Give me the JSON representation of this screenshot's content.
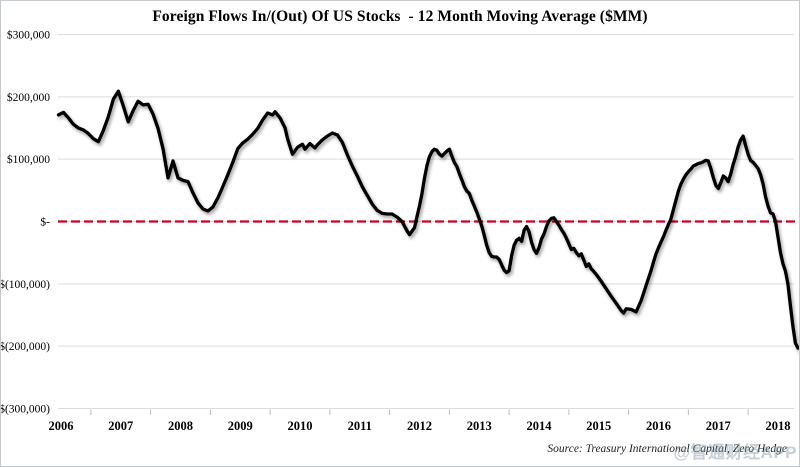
{
  "header": {
    "title": "Foreign Flows In/(Out) Of US Stocks  - 12 Month Moving Average ($MM)"
  },
  "footer": {
    "source": "Source: Treasury International Capital, Zero Hedge",
    "watermark": "@智通财经APP"
  },
  "chart_data": {
    "type": "line",
    "title": "Foreign Flows In/(Out) Of US Stocks - 12 Month Moving Average ($MM)",
    "xlabel": "",
    "ylabel": "",
    "legend": "none",
    "grid": "horizontal-only",
    "colors": {
      "line": "#000000",
      "zero_line": "#CC0022",
      "gridline": "#dcdcdc",
      "tick": "#b7bcc0",
      "text": "#000000",
      "background": "#ffffff"
    },
    "y_axis": {
      "min": -300000,
      "max": 300000,
      "ticks": [
        {
          "label": "$300,000",
          "value": 300000
        },
        {
          "label": "$200,000",
          "value": 200000
        },
        {
          "label": "$100,000",
          "value": 100000
        },
        {
          "label": "$-",
          "value": 0
        },
        {
          "label": "$(100,000)",
          "value": -100000
        },
        {
          "label": "$(200,000)",
          "value": -200000
        },
        {
          "label": "$(300,000)",
          "value": -300000
        }
      ]
    },
    "x_axis": {
      "min": 2006,
      "max": 2018.4,
      "ticks": [
        "2006",
        "2007",
        "2008",
        "2009",
        "2010",
        "2011",
        "2012",
        "2013",
        "2014",
        "2015",
        "2016",
        "2017",
        "2018"
      ]
    },
    "reference_line": {
      "value": 0,
      "color": "#CC0022",
      "style": "dashed"
    },
    "series": [
      {
        "name": "Foreign flows into US stocks, 12-month moving average ($MM)",
        "color": "#000000",
        "points": [
          [
            2006.0,
            171000
          ],
          [
            2006.083,
            175000
          ],
          [
            2006.167,
            166000
          ],
          [
            2006.25,
            156000
          ],
          [
            2006.333,
            150000
          ],
          [
            2006.417,
            147000
          ],
          [
            2006.5,
            141000
          ],
          [
            2006.583,
            133000
          ],
          [
            2006.667,
            128000
          ],
          [
            2006.75,
            146000
          ],
          [
            2006.833,
            168000
          ],
          [
            2006.917,
            196000
          ],
          [
            2007.0,
            209000
          ],
          [
            2007.083,
            186000
          ],
          [
            2007.167,
            160000
          ],
          [
            2007.25,
            178000
          ],
          [
            2007.333,
            193000
          ],
          [
            2007.417,
            187000
          ],
          [
            2007.5,
            188000
          ],
          [
            2007.583,
            172000
          ],
          [
            2007.667,
            149000
          ],
          [
            2007.75,
            116000
          ],
          [
            2007.833,
            70000
          ],
          [
            2007.917,
            97000
          ],
          [
            2008.0,
            70000
          ],
          [
            2008.083,
            66000
          ],
          [
            2008.167,
            64000
          ],
          [
            2008.25,
            46000
          ],
          [
            2008.333,
            30000
          ],
          [
            2008.417,
            20000
          ],
          [
            2008.5,
            17000
          ],
          [
            2008.583,
            23000
          ],
          [
            2008.667,
            38000
          ],
          [
            2008.75,
            56000
          ],
          [
            2008.833,
            75000
          ],
          [
            2008.917,
            95000
          ],
          [
            2009.0,
            117000
          ],
          [
            2009.083,
            126000
          ],
          [
            2009.167,
            132000
          ],
          [
            2009.25,
            140000
          ],
          [
            2009.333,
            149000
          ],
          [
            2009.417,
            163000
          ],
          [
            2009.5,
            174000
          ],
          [
            2009.583,
            171000
          ],
          [
            2009.625,
            176000
          ],
          [
            2009.708,
            166000
          ],
          [
            2009.792,
            150000
          ],
          [
            2009.833,
            133000
          ],
          [
            2009.917,
            108000
          ],
          [
            2010.0,
            119000
          ],
          [
            2010.083,
            124000
          ],
          [
            2010.125,
            116000
          ],
          [
            2010.208,
            125000
          ],
          [
            2010.292,
            118000
          ],
          [
            2010.333,
            123000
          ],
          [
            2010.417,
            131000
          ],
          [
            2010.5,
            137000
          ],
          [
            2010.583,
            142000
          ],
          [
            2010.667,
            139000
          ],
          [
            2010.75,
            127000
          ],
          [
            2010.833,
            107000
          ],
          [
            2010.917,
            89000
          ],
          [
            2011.0,
            73000
          ],
          [
            2011.083,
            56000
          ],
          [
            2011.167,
            42000
          ],
          [
            2011.25,
            28000
          ],
          [
            2011.333,
            18000
          ],
          [
            2011.417,
            13000
          ],
          [
            2011.5,
            12000
          ],
          [
            2011.583,
            12000
          ],
          [
            2011.667,
            7000
          ],
          [
            2011.75,
            0
          ],
          [
            2011.833,
            -15000
          ],
          [
            2011.875,
            -21000
          ],
          [
            2011.958,
            -10000
          ],
          [
            2012.0,
            8000
          ],
          [
            2012.042,
            25000
          ],
          [
            2012.083,
            45000
          ],
          [
            2012.125,
            70000
          ],
          [
            2012.167,
            90000
          ],
          [
            2012.208,
            104000
          ],
          [
            2012.25,
            112000
          ],
          [
            2012.292,
            116000
          ],
          [
            2012.333,
            114000
          ],
          [
            2012.375,
            108000
          ],
          [
            2012.417,
            105000
          ],
          [
            2012.458,
            109000
          ],
          [
            2012.5,
            113000
          ],
          [
            2012.542,
            116000
          ],
          [
            2012.583,
            105000
          ],
          [
            2012.625,
            95000
          ],
          [
            2012.667,
            88000
          ],
          [
            2012.708,
            77000
          ],
          [
            2012.75,
            67000
          ],
          [
            2012.792,
            56000
          ],
          [
            2012.833,
            49000
          ],
          [
            2012.875,
            45000
          ],
          [
            2012.917,
            34000
          ],
          [
            2012.958,
            25000
          ],
          [
            2013.0,
            15000
          ],
          [
            2013.042,
            4000
          ],
          [
            2013.083,
            -7000
          ],
          [
            2013.125,
            -22000
          ],
          [
            2013.167,
            -38000
          ],
          [
            2013.208,
            -50000
          ],
          [
            2013.25,
            -56000
          ],
          [
            2013.292,
            -57000
          ],
          [
            2013.333,
            -57000
          ],
          [
            2013.375,
            -61000
          ],
          [
            2013.417,
            -70000
          ],
          [
            2013.458,
            -78000
          ],
          [
            2013.5,
            -82000
          ],
          [
            2013.542,
            -79000
          ],
          [
            2013.583,
            -55000
          ],
          [
            2013.625,
            -38000
          ],
          [
            2013.667,
            -30000
          ],
          [
            2013.708,
            -27000
          ],
          [
            2013.75,
            -32000
          ],
          [
            2013.792,
            -14000
          ],
          [
            2013.833,
            -8000
          ],
          [
            2013.875,
            -16000
          ],
          [
            2013.917,
            -33000
          ],
          [
            2013.958,
            -45000
          ],
          [
            2014.0,
            -51000
          ],
          [
            2014.042,
            -42000
          ],
          [
            2014.083,
            -28000
          ],
          [
            2014.125,
            -20000
          ],
          [
            2014.167,
            -8000
          ],
          [
            2014.208,
            1000
          ],
          [
            2014.25,
            5000
          ],
          [
            2014.292,
            6000
          ],
          [
            2014.333,
            0
          ],
          [
            2014.375,
            -6000
          ],
          [
            2014.417,
            -13000
          ],
          [
            2014.458,
            -19000
          ],
          [
            2014.5,
            -27000
          ],
          [
            2014.542,
            -36000
          ],
          [
            2014.583,
            -45000
          ],
          [
            2014.625,
            -43000
          ],
          [
            2014.667,
            -50000
          ],
          [
            2014.708,
            -55000
          ],
          [
            2014.75,
            -52000
          ],
          [
            2014.792,
            -62000
          ],
          [
            2014.833,
            -72000
          ],
          [
            2014.875,
            -68000
          ],
          [
            2014.917,
            -76000
          ],
          [
            2014.958,
            -80000
          ],
          [
            2015.0,
            -85000
          ],
          [
            2015.083,
            -96000
          ],
          [
            2015.167,
            -108000
          ],
          [
            2015.25,
            -120000
          ],
          [
            2015.333,
            -131000
          ],
          [
            2015.417,
            -143000
          ],
          [
            2015.458,
            -147000
          ],
          [
            2015.5,
            -140000
          ],
          [
            2015.583,
            -141000
          ],
          [
            2015.667,
            -145000
          ],
          [
            2015.708,
            -136000
          ],
          [
            2015.75,
            -127000
          ],
          [
            2015.792,
            -115000
          ],
          [
            2015.833,
            -103000
          ],
          [
            2015.875,
            -91000
          ],
          [
            2015.917,
            -79000
          ],
          [
            2015.958,
            -65000
          ],
          [
            2016.0,
            -52000
          ],
          [
            2016.042,
            -42000
          ],
          [
            2016.083,
            -33000
          ],
          [
            2016.125,
            -24000
          ],
          [
            2016.167,
            -14000
          ],
          [
            2016.208,
            -5000
          ],
          [
            2016.25,
            4000
          ],
          [
            2016.292,
            19000
          ],
          [
            2016.333,
            34000
          ],
          [
            2016.375,
            49000
          ],
          [
            2016.417,
            60000
          ],
          [
            2016.458,
            68000
          ],
          [
            2016.5,
            75000
          ],
          [
            2016.542,
            80000
          ],
          [
            2016.583,
            84000
          ],
          [
            2016.625,
            89000
          ],
          [
            2016.667,
            91000
          ],
          [
            2016.708,
            93000
          ],
          [
            2016.75,
            94000
          ],
          [
            2016.792,
            96000
          ],
          [
            2016.833,
            98000
          ],
          [
            2016.875,
            97000
          ],
          [
            2016.917,
            85000
          ],
          [
            2016.958,
            71000
          ],
          [
            2017.0,
            58000
          ],
          [
            2017.042,
            53000
          ],
          [
            2017.083,
            62000
          ],
          [
            2017.125,
            73000
          ],
          [
            2017.167,
            70000
          ],
          [
            2017.208,
            64000
          ],
          [
            2017.25,
            76000
          ],
          [
            2017.292,
            92000
          ],
          [
            2017.333,
            104000
          ],
          [
            2017.375,
            120000
          ],
          [
            2017.417,
            131000
          ],
          [
            2017.458,
            137000
          ],
          [
            2017.5,
            122000
          ],
          [
            2017.542,
            108000
          ],
          [
            2017.583,
            98000
          ],
          [
            2017.625,
            95000
          ],
          [
            2017.667,
            90000
          ],
          [
            2017.708,
            85000
          ],
          [
            2017.75,
            75000
          ],
          [
            2017.792,
            60000
          ],
          [
            2017.833,
            40000
          ],
          [
            2017.875,
            25000
          ],
          [
            2017.917,
            14000
          ],
          [
            2017.958,
            12000
          ],
          [
            2018.0,
            0
          ],
          [
            2018.042,
            -25000
          ],
          [
            2018.083,
            -50000
          ],
          [
            2018.125,
            -68000
          ],
          [
            2018.167,
            -80000
          ],
          [
            2018.208,
            -100000
          ],
          [
            2018.25,
            -135000
          ],
          [
            2018.292,
            -168000
          ],
          [
            2018.333,
            -195000
          ],
          [
            2018.375,
            -203000
          ]
        ]
      }
    ]
  }
}
